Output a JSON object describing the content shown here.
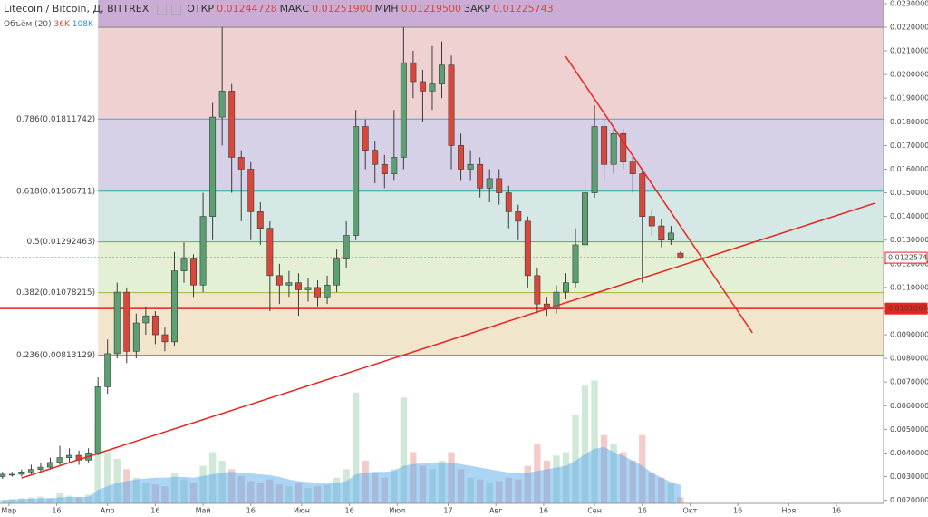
{
  "header": {
    "title": "Litecoin / Bitcoin, Д, BITTREX",
    "ohlc": [
      {
        "name": "ОТКР",
        "value": "0.01244728"
      },
      {
        "name": "МАКС",
        "value": "0.01251900"
      },
      {
        "name": "МИН",
        "value": "0.01219500"
      },
      {
        "name": "ЗАКР",
        "value": "0.01225743"
      }
    ],
    "volume_legend": {
      "name": "Объём (20)",
      "last": "36K",
      "ma": "108K"
    }
  },
  "chart_data": {
    "type": "candlestick",
    "x": [
      58,
      61,
      64,
      67,
      70,
      73,
      76,
      79,
      82,
      85,
      88,
      91,
      94,
      97,
      100,
      103,
      106,
      109,
      112,
      115,
      118,
      121,
      124,
      127,
      130,
      133,
      136,
      139,
      142,
      145,
      148,
      151,
      154,
      157,
      160,
      163,
      166,
      169,
      172,
      175,
      178,
      181,
      184,
      187,
      190,
      193,
      196,
      199,
      202,
      205,
      208,
      211,
      214,
      217,
      220,
      223,
      226,
      229,
      232,
      235,
      238,
      241,
      244,
      247,
      250,
      253,
      256,
      259,
      262,
      265,
      268,
      271
    ],
    "open": [
      0.003,
      0.0031,
      0.0031,
      0.0032,
      0.0033,
      0.0034,
      0.0036,
      0.0038,
      0.0039,
      0.0037,
      0.004,
      0.0068,
      0.0082,
      0.0108,
      0.0083,
      0.0095,
      0.0098,
      0.009,
      0.0087,
      0.0117,
      0.0122,
      0.0111,
      0.014,
      0.0182,
      0.0193,
      0.0165,
      0.016,
      0.0142,
      0.0135,
      0.0115,
      0.0111,
      0.0112,
      0.0109,
      0.011,
      0.0106,
      0.0111,
      0.0122,
      0.0132,
      0.0178,
      0.0168,
      0.0162,
      0.0158,
      0.0165,
      0.0205,
      0.0197,
      0.0193,
      0.0196,
      0.0204,
      0.017,
      0.016,
      0.0162,
      0.0152,
      0.0156,
      0.015,
      0.0142,
      0.0138,
      0.0115,
      0.0103,
      0.0101,
      0.0108,
      0.0112,
      0.0128,
      0.015,
      0.0178,
      0.0162,
      0.0175,
      0.0163,
      0.0158,
      0.014,
      0.0136,
      0.013,
      0.01244728
    ],
    "high": [
      0.0032,
      0.0032,
      0.0033,
      0.0035,
      0.0036,
      0.0038,
      0.0043,
      0.0042,
      0.0041,
      0.0042,
      0.0072,
      0.0088,
      0.0112,
      0.011,
      0.0099,
      0.0102,
      0.01,
      0.0093,
      0.0125,
      0.0129,
      0.0124,
      0.015,
      0.0188,
      0.022,
      0.0196,
      0.0168,
      0.0163,
      0.0146,
      0.0138,
      0.012,
      0.0117,
      0.0116,
      0.0114,
      0.0113,
      0.0115,
      0.0126,
      0.0138,
      0.0185,
      0.0181,
      0.0172,
      0.0166,
      0.0185,
      0.022,
      0.021,
      0.0202,
      0.0212,
      0.0214,
      0.0208,
      0.0175,
      0.0168,
      0.0165,
      0.016,
      0.016,
      0.0153,
      0.0145,
      0.014,
      0.0118,
      0.0106,
      0.0111,
      0.0116,
      0.0135,
      0.0155,
      0.0187,
      0.0181,
      0.0178,
      0.0177,
      0.0165,
      0.016,
      0.0143,
      0.0139,
      0.0136,
      0.012519
    ],
    "low": [
      0.0029,
      0.003,
      0.003,
      0.0031,
      0.0032,
      0.0033,
      0.0035,
      0.0036,
      0.0035,
      0.0036,
      0.0039,
      0.0065,
      0.008,
      0.0078,
      0.008,
      0.009,
      0.0086,
      0.0083,
      0.0085,
      0.0112,
      0.0106,
      0.0108,
      0.013,
      0.017,
      0.015,
      0.0138,
      0.013,
      0.0128,
      0.01,
      0.0103,
      0.0106,
      0.0098,
      0.0104,
      0.0102,
      0.0103,
      0.0108,
      0.0118,
      0.013,
      0.016,
      0.0154,
      0.0152,
      0.0155,
      0.016,
      0.019,
      0.018,
      0.0185,
      0.019,
      0.016,
      0.0155,
      0.0155,
      0.0148,
      0.0146,
      0.0145,
      0.0135,
      0.013,
      0.011,
      0.0099,
      0.0098,
      0.0099,
      0.0105,
      0.011,
      0.0125,
      0.0148,
      0.0155,
      0.0158,
      0.016,
      0.015,
      0.0112,
      0.0132,
      0.0127,
      0.0128,
      0.012195
    ],
    "close": [
      0.0031,
      0.0031,
      0.0032,
      0.0033,
      0.0034,
      0.0036,
      0.0038,
      0.0039,
      0.0037,
      0.004,
      0.0068,
      0.0082,
      0.0108,
      0.0083,
      0.0095,
      0.0098,
      0.009,
      0.0087,
      0.0117,
      0.0122,
      0.0111,
      0.014,
      0.0182,
      0.0193,
      0.0165,
      0.016,
      0.0142,
      0.0135,
      0.0115,
      0.0111,
      0.0112,
      0.0109,
      0.011,
      0.0106,
      0.0111,
      0.0122,
      0.0132,
      0.0178,
      0.0168,
      0.0162,
      0.0158,
      0.0165,
      0.0205,
      0.0197,
      0.0193,
      0.0196,
      0.0204,
      0.017,
      0.016,
      0.0162,
      0.0152,
      0.0156,
      0.015,
      0.0142,
      0.0138,
      0.0115,
      0.0103,
      0.0101,
      0.0108,
      0.0112,
      0.0128,
      0.015,
      0.0178,
      0.0162,
      0.0175,
      0.0163,
      0.0158,
      0.014,
      0.0136,
      0.013,
      0.0133,
      0.01225743
    ],
    "volume": [
      20000,
      25000,
      30000,
      35000,
      40000,
      30000,
      60000,
      45000,
      35000,
      50000,
      430000,
      300000,
      260000,
      200000,
      150000,
      120000,
      110000,
      100000,
      180000,
      140000,
      120000,
      220000,
      300000,
      250000,
      200000,
      160000,
      130000,
      120000,
      140000,
      110000,
      100000,
      120000,
      90000,
      100000,
      110000,
      150000,
      200000,
      650000,
      250000,
      180000,
      150000,
      200000,
      620000,
      300000,
      220000,
      200000,
      250000,
      300000,
      200000,
      150000,
      140000,
      120000,
      130000,
      150000,
      140000,
      220000,
      350000,
      250000,
      280000,
      300000,
      520000,
      690000,
      720000,
      400000,
      350000,
      300000,
      250000,
      400000,
      180000,
      150000,
      120000,
      36000
    ],
    "volume_ma": [
      20000,
      22000,
      25000,
      28000,
      30000,
      30000,
      35000,
      37000,
      37000,
      38000,
      80000,
      100000,
      120000,
      130000,
      140000,
      145000,
      150000,
      150000,
      155000,
      155000,
      150000,
      160000,
      170000,
      180000,
      185000,
      180000,
      175000,
      170000,
      165000,
      155000,
      140000,
      130000,
      125000,
      120000,
      115000,
      120000,
      130000,
      170000,
      180000,
      185000,
      185000,
      190000,
      220000,
      230000,
      235000,
      235000,
      240000,
      240000,
      230000,
      220000,
      210000,
      200000,
      190000,
      180000,
      175000,
      180000,
      190000,
      200000,
      210000,
      220000,
      250000,
      290000,
      320000,
      330000,
      300000,
      280000,
      250000,
      220000,
      180000,
      150000,
      125000,
      108000
    ],
    "up_color": "#5b9f72",
    "down_color": "#d9473a",
    "wick_color": "#3a3a3a",
    "volume_up_color": "rgba(120,190,140,0.35)",
    "volume_down_color": "rgba(220,110,100,0.35)",
    "volume_ma_color": "rgba(90,170,235,0.5)",
    "volume_ylim": [
      0,
      2950000
    ],
    "xlim": [
      57.2,
      334.8
    ],
    "xticks": [
      {
        "value": 60,
        "label": "Мар"
      },
      {
        "value": 75,
        "label": "16"
      },
      {
        "value": 91,
        "label": "Апр"
      },
      {
        "value": 106,
        "label": "16"
      },
      {
        "value": 121,
        "label": "Май"
      },
      {
        "value": 136,
        "label": "16"
      },
      {
        "value": 152,
        "label": "Июн"
      },
      {
        "value": 167,
        "label": "16"
      },
      {
        "value": 182,
        "label": "Июл"
      },
      {
        "value": 198,
        "label": "17"
      },
      {
        "value": 213,
        "label": "Авг"
      },
      {
        "value": 228,
        "label": "16"
      },
      {
        "value": 244,
        "label": "Сен"
      },
      {
        "value": 259,
        "label": "16"
      },
      {
        "value": 274,
        "label": "Окт"
      },
      {
        "value": 289,
        "label": "16"
      },
      {
        "value": 305,
        "label": "Ноя"
      },
      {
        "value": 320,
        "label": "16"
      }
    ],
    "ylim": [
      0.00187,
      0.02315
    ],
    "yticks": [
      {
        "value": 0.002,
        "label": "0.00200000"
      },
      {
        "value": 0.003,
        "label": "0.00300000"
      },
      {
        "value": 0.004,
        "label": "0.00400000"
      },
      {
        "value": 0.005,
        "label": "0.00500000"
      },
      {
        "value": 0.006,
        "label": "0.00600000"
      },
      {
        "value": 0.007,
        "label": "0.00700000"
      },
      {
        "value": 0.008,
        "label": "0.00800000"
      },
      {
        "value": 0.009,
        "label": "0.00900000"
      },
      {
        "value": 0.01,
        "label": "0.01000000"
      },
      {
        "value": 0.011,
        "label": "0.01100000"
      },
      {
        "value": 0.012,
        "label": "0.01200000"
      },
      {
        "value": 0.013,
        "label": "0.01300000"
      },
      {
        "value": 0.014,
        "label": "0.01400000"
      },
      {
        "value": 0.015,
        "label": "0.01500000"
      },
      {
        "value": 0.016,
        "label": "0.01600000"
      },
      {
        "value": 0.017,
        "label": "0.01700000"
      },
      {
        "value": 0.018,
        "label": "0.01800000"
      },
      {
        "value": 0.019,
        "label": "0.01900000"
      },
      {
        "value": 0.02,
        "label": "0.02000000"
      },
      {
        "value": 0.021,
        "label": "0.02100000"
      },
      {
        "value": 0.022,
        "label": "0.02200000"
      },
      {
        "value": 0.023,
        "label": "0.02300000"
      }
    ],
    "fib_x_start": 88,
    "fib_top": 0.022,
    "fib_top_color": "#999999",
    "top_band": "rgba(140,70,160,0.45)",
    "fib_levels": [
      {
        "value": 0.01811742,
        "label": "0.786(0.01811742)",
        "color": "#4f9fd8",
        "band": "rgba(200,90,90,0.28)"
      },
      {
        "value": 0.01506711,
        "label": "0.618(0.01506711)",
        "color": "#2aa9a3",
        "band": "rgba(110,90,170,0.28)"
      },
      {
        "value": 0.01292463,
        "label": "0.5(0.01292463)",
        "color": "#4cb84c",
        "band": "rgba(70,150,140,0.22)"
      },
      {
        "value": 0.01078215,
        "label": "0.382(0.01078215)",
        "color": "#9fb83a",
        "band": "rgba(130,185,70,0.22)"
      },
      {
        "value": 0.00813129,
        "label": "0.236(0.00813129)",
        "color": "#e04848",
        "band": "rgba(205,160,70,0.28)"
      }
    ],
    "support_line": 0.01010672,
    "support_color": "#e8231e",
    "last_price": 0.01225743,
    "last_price_color": "#e8231e",
    "trend_lines": [
      {
        "x": [
          64,
          332
        ],
        "y": [
          0.00294,
          0.01456
        ],
        "color": "#e8231e"
      },
      {
        "x": [
          234.9,
          293.6
        ],
        "y": [
          0.020773,
          0.009078
        ],
        "color": "#e8231e"
      }
    ]
  }
}
